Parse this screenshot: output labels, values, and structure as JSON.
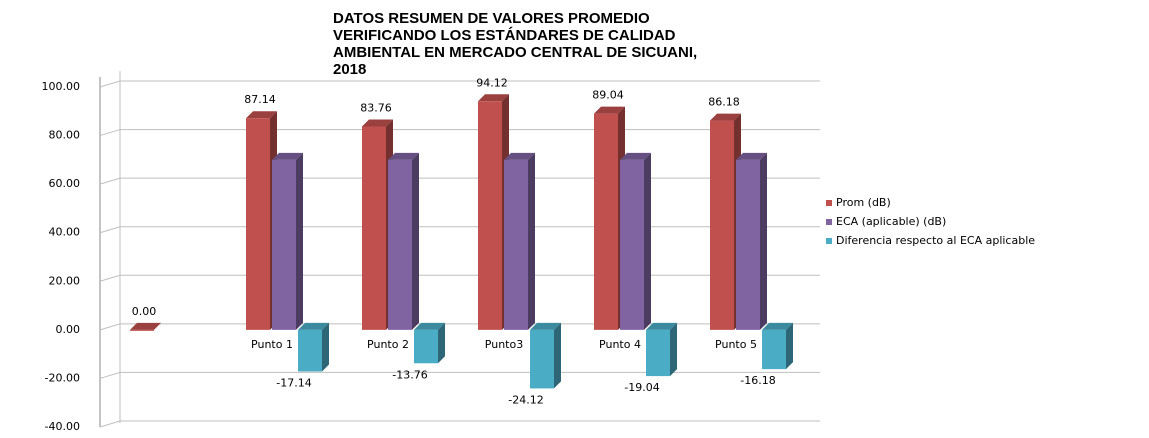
{
  "chart_data": {
    "type": "bar3d",
    "title": [
      "DATOS RESUMEN DE VALORES PROMEDIO",
      "VERIFICANDO LOS ESTÁNDARES DE CALIDAD",
      "AMBIENTAL EN MERCADO CENTRAL DE SICUANI,",
      "2018"
    ],
    "categories": [
      null,
      "Punto 1",
      "Punto 2",
      "Punto3",
      "Punto 4",
      "Punto 5"
    ],
    "series": [
      {
        "name": "Prom  (dB)",
        "color": "#c0504d",
        "values": [
          0,
          87.14,
          83.76,
          94.12,
          89.04,
          86.18
        ],
        "value_labels": [
          "0.00",
          "87.14",
          "83.76",
          "94.12",
          "89.04",
          "86.18"
        ]
      },
      {
        "name": "ECA (aplicable)  (dB)",
        "color": "#8064a2",
        "values": [
          null,
          70,
          70,
          70,
          70,
          70
        ]
      },
      {
        "name": "Diferencia respecto al ECA aplicable",
        "color": "#4bacc6",
        "values": [
          null,
          -17.14,
          -13.76,
          -24.12,
          -19.04,
          -16.18
        ]
      }
    ],
    "ylim": [
      -40,
      100
    ],
    "yticks": [
      {
        "value": -40,
        "label": "-40.00"
      },
      {
        "value": -20,
        "label": "-20.00"
      },
      {
        "value": 0,
        "label": "0.00"
      },
      {
        "value": 20,
        "label": "20.00"
      },
      {
        "value": 40,
        "label": "40.00"
      },
      {
        "value": 60,
        "label": "60.00"
      },
      {
        "value": 80,
        "label": "80.00"
      },
      {
        "value": 100,
        "label": "100.00"
      }
    ],
    "grid": true,
    "legend": "right"
  }
}
